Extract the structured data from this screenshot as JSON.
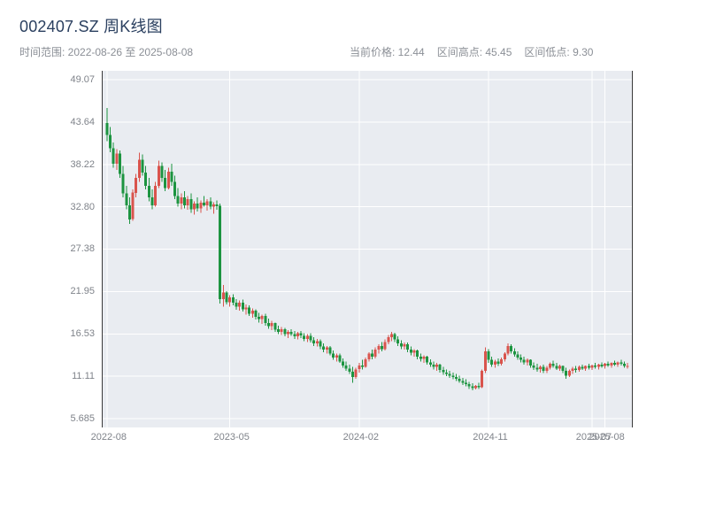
{
  "header": {
    "title": "002407.SZ 周K线图",
    "time_range": "时间范围: 2022-08-26 至 2025-08-08"
  },
  "stats": {
    "current_price": "当前价格: 12.44",
    "range_high": "区间高点: 45.45",
    "range_low": "区间低点: 9.30"
  },
  "chart_data": {
    "type": "candlestick",
    "title": "002407.SZ 周K线图",
    "frequency": "weekly",
    "time_range_start": "2022-08-26",
    "time_range_end": "2025-08-08",
    "current_price": 12.44,
    "range_high": 45.45,
    "range_low": 9.3,
    "up_color": "#d9544d",
    "down_color": "#1c9440",
    "plot_bg": "#e9ecf1",
    "grid_color": "#ffffff",
    "y_tick_labels": [
      "49.07",
      "43.64",
      "38.22",
      "32.80",
      "27.38",
      "21.95",
      "16.53",
      "11.11",
      "5.685"
    ],
    "x_ticks": [
      {
        "label": "2022-08",
        "i": 0
      },
      {
        "label": "2023-05",
        "i": 38
      },
      {
        "label": "2024-02",
        "i": 78
      },
      {
        "label": "2024-11",
        "i": 118
      },
      {
        "label": "2025-07",
        "i": 150
      },
      {
        "label": "2025-08",
        "i": 154
      }
    ],
    "candle_format": [
      "open",
      "high",
      "low",
      "close"
    ],
    "candles": [
      [
        43.5,
        45.45,
        41.2,
        42.0
      ],
      [
        42.0,
        43.0,
        39.8,
        40.3
      ],
      [
        40.3,
        41.0,
        37.8,
        38.3
      ],
      [
        38.3,
        40.2,
        37.5,
        39.6
      ],
      [
        39.6,
        40.0,
        36.5,
        37.0
      ],
      [
        37.0,
        38.0,
        34.0,
        34.5
      ],
      [
        34.5,
        35.5,
        32.5,
        33.0
      ],
      [
        33.0,
        34.0,
        30.6,
        31.2
      ],
      [
        31.2,
        35.0,
        31.0,
        34.6
      ],
      [
        34.6,
        37.0,
        34.0,
        36.5
      ],
      [
        36.5,
        39.7,
        36.0,
        38.8
      ],
      [
        38.8,
        39.5,
        36.8,
        37.2
      ],
      [
        37.2,
        38.0,
        35.0,
        35.5
      ],
      [
        35.5,
        36.5,
        33.5,
        34.0
      ],
      [
        34.0,
        35.0,
        32.5,
        33.0
      ],
      [
        33.0,
        36.0,
        32.8,
        35.5
      ],
      [
        35.5,
        38.7,
        35.2,
        38.0
      ],
      [
        38.0,
        38.5,
        36.0,
        36.5
      ],
      [
        36.5,
        37.5,
        34.8,
        35.2
      ],
      [
        35.2,
        37.8,
        35.0,
        37.3
      ],
      [
        37.3,
        38.3,
        35.5,
        36.0
      ],
      [
        36.0,
        36.8,
        33.8,
        34.2
      ],
      [
        34.2,
        35.2,
        32.8,
        33.2
      ],
      [
        33.2,
        34.5,
        32.5,
        34.0
      ],
      [
        34.0,
        34.8,
        32.6,
        33.0
      ],
      [
        33.0,
        34.2,
        32.4,
        33.8
      ],
      [
        33.8,
        34.5,
        32.0,
        32.5
      ],
      [
        32.5,
        33.5,
        31.8,
        33.2
      ],
      [
        33.2,
        34.0,
        32.2,
        32.6
      ],
      [
        32.6,
        33.6,
        32.0,
        33.3
      ],
      [
        33.3,
        34.2,
        32.8,
        33.0
      ],
      [
        33.0,
        33.8,
        32.3,
        33.5
      ],
      [
        33.5,
        34.0,
        32.5,
        32.8
      ],
      [
        32.8,
        33.4,
        31.9,
        33.1
      ],
      [
        33.1,
        33.6,
        32.4,
        32.9
      ],
      [
        32.9,
        33.2,
        20.4,
        21.0
      ],
      [
        21.0,
        22.8,
        20.0,
        21.8
      ],
      [
        21.8,
        22.0,
        20.3,
        20.6
      ],
      [
        20.6,
        21.5,
        20.0,
        21.2
      ],
      [
        21.2,
        21.6,
        20.2,
        20.5
      ],
      [
        20.5,
        21.0,
        19.6,
        20.0
      ],
      [
        20.0,
        20.8,
        19.5,
        20.5
      ],
      [
        20.5,
        20.9,
        19.4,
        19.7
      ],
      [
        19.7,
        20.3,
        19.0,
        19.9
      ],
      [
        19.9,
        20.2,
        18.8,
        19.1
      ],
      [
        19.1,
        19.8,
        18.6,
        19.5
      ],
      [
        19.5,
        19.7,
        18.4,
        18.7
      ],
      [
        18.7,
        19.2,
        18.0,
        18.4
      ],
      [
        18.4,
        19.0,
        17.8,
        18.8
      ],
      [
        18.8,
        19.1,
        17.6,
        17.9
      ],
      [
        17.9,
        18.5,
        17.2,
        17.5
      ],
      [
        17.5,
        18.2,
        17.0,
        17.9
      ],
      [
        17.9,
        18.0,
        16.8,
        17.1
      ],
      [
        17.1,
        17.6,
        16.5,
        16.8
      ],
      [
        16.8,
        17.4,
        16.4,
        17.1
      ],
      [
        17.1,
        17.3,
        16.2,
        16.5
      ],
      [
        16.5,
        17.0,
        16.0,
        16.8
      ],
      [
        16.8,
        17.1,
        16.3,
        16.5
      ],
      [
        16.5,
        16.9,
        15.9,
        16.2
      ],
      [
        16.2,
        16.8,
        15.8,
        16.6
      ],
      [
        16.6,
        16.9,
        16.0,
        16.3
      ],
      [
        16.3,
        16.6,
        15.6,
        15.9
      ],
      [
        15.9,
        16.5,
        15.5,
        16.3
      ],
      [
        16.3,
        16.6,
        15.4,
        15.7
      ],
      [
        15.7,
        16.1,
        15.0,
        15.3
      ],
      [
        15.3,
        15.9,
        14.9,
        15.6
      ],
      [
        15.6,
        15.8,
        14.6,
        14.9
      ],
      [
        14.9,
        15.3,
        14.2,
        14.5
      ],
      [
        14.5,
        15.0,
        14.0,
        14.8
      ],
      [
        14.8,
        15.0,
        13.8,
        14.0
      ],
      [
        14.0,
        14.4,
        13.2,
        13.5
      ],
      [
        13.5,
        14.0,
        13.0,
        13.8
      ],
      [
        13.8,
        14.0,
        12.8,
        13.0
      ],
      [
        13.0,
        13.4,
        12.2,
        12.5
      ],
      [
        12.5,
        13.0,
        11.8,
        12.1
      ],
      [
        12.1,
        12.6,
        11.4,
        11.7
      ],
      [
        11.7,
        12.3,
        10.3,
        11.0
      ],
      [
        11.0,
        12.2,
        10.8,
        12.0
      ],
      [
        12.0,
        12.8,
        11.6,
        12.5
      ],
      [
        12.5,
        13.2,
        12.0,
        12.3
      ],
      [
        12.3,
        13.5,
        12.2,
        13.3
      ],
      [
        13.3,
        14.2,
        13.0,
        14.0
      ],
      [
        14.0,
        14.5,
        13.3,
        13.6
      ],
      [
        13.6,
        14.8,
        13.4,
        14.5
      ],
      [
        14.5,
        15.2,
        14.0,
        15.0
      ],
      [
        15.0,
        15.5,
        14.3,
        14.6
      ],
      [
        14.6,
        15.8,
        14.4,
        15.5
      ],
      [
        15.5,
        16.4,
        15.2,
        16.1
      ],
      [
        16.1,
        16.8,
        15.6,
        16.5
      ],
      [
        16.5,
        16.7,
        15.5,
        15.8
      ],
      [
        15.8,
        16.2,
        15.0,
        15.3
      ],
      [
        15.3,
        15.7,
        14.6,
        14.9
      ],
      [
        14.9,
        15.4,
        14.5,
        15.2
      ],
      [
        15.2,
        15.4,
        14.2,
        14.5
      ],
      [
        14.5,
        14.9,
        13.8,
        14.1
      ],
      [
        14.1,
        14.6,
        13.6,
        14.4
      ],
      [
        14.4,
        14.5,
        13.3,
        13.6
      ],
      [
        13.6,
        14.0,
        13.0,
        13.3
      ],
      [
        13.3,
        13.8,
        12.8,
        13.6
      ],
      [
        13.6,
        13.7,
        12.6,
        12.9
      ],
      [
        12.9,
        13.3,
        12.3,
        12.6
      ],
      [
        12.6,
        13.0,
        12.0,
        12.3
      ],
      [
        12.3,
        12.8,
        11.8,
        12.6
      ],
      [
        12.6,
        12.7,
        11.6,
        11.9
      ],
      [
        11.9,
        12.3,
        11.3,
        11.6
      ],
      [
        11.6,
        12.0,
        11.1,
        11.4
      ],
      [
        11.4,
        11.8,
        10.9,
        11.2
      ],
      [
        11.2,
        11.6,
        10.7,
        11.0
      ],
      [
        11.0,
        11.4,
        10.5,
        10.8
      ],
      [
        10.8,
        11.2,
        10.3,
        10.5
      ],
      [
        10.5,
        10.9,
        10.0,
        10.3
      ],
      [
        10.3,
        10.7,
        9.8,
        10.1
      ],
      [
        10.1,
        10.4,
        9.5,
        9.8
      ],
      [
        9.8,
        10.2,
        9.3,
        9.6
      ],
      [
        9.6,
        10.0,
        9.4,
        9.9
      ],
      [
        9.9,
        10.3,
        9.5,
        9.7
      ],
      [
        9.7,
        12.0,
        9.6,
        11.8
      ],
      [
        11.8,
        14.8,
        11.5,
        14.3
      ],
      [
        14.3,
        14.6,
        12.8,
        13.2
      ],
      [
        13.2,
        13.6,
        12.3,
        12.6
      ],
      [
        12.6,
        13.2,
        12.2,
        13.0
      ],
      [
        13.0,
        13.4,
        12.4,
        12.7
      ],
      [
        12.7,
        13.5,
        12.5,
        13.3
      ],
      [
        13.3,
        14.2,
        13.0,
        14.0
      ],
      [
        14.0,
        15.3,
        13.8,
        15.0
      ],
      [
        15.0,
        15.2,
        14.0,
        14.3
      ],
      [
        14.3,
        14.7,
        13.6,
        13.9
      ],
      [
        13.9,
        14.3,
        13.2,
        13.5
      ],
      [
        13.5,
        13.9,
        12.9,
        13.2
      ],
      [
        13.2,
        13.6,
        12.6,
        12.9
      ],
      [
        12.9,
        13.4,
        12.5,
        13.2
      ],
      [
        13.2,
        13.3,
        12.2,
        12.5
      ],
      [
        12.5,
        12.9,
        11.9,
        12.2
      ],
      [
        12.2,
        12.7,
        11.7,
        12.0
      ],
      [
        12.0,
        12.5,
        11.6,
        12.3
      ],
      [
        12.3,
        12.6,
        11.5,
        11.8
      ],
      [
        11.8,
        12.4,
        11.5,
        12.2
      ],
      [
        12.2,
        12.9,
        12.0,
        12.7
      ],
      [
        12.7,
        13.1,
        12.2,
        12.4
      ],
      [
        12.4,
        12.8,
        11.9,
        12.1
      ],
      [
        12.1,
        12.6,
        11.8,
        12.4
      ],
      [
        12.4,
        12.5,
        11.5,
        11.8
      ],
      [
        11.8,
        12.2,
        10.8,
        11.2
      ],
      [
        11.2,
        12.0,
        11.0,
        11.8
      ],
      [
        11.8,
        12.3,
        11.4,
        12.1
      ],
      [
        12.1,
        12.4,
        11.6,
        11.9
      ],
      [
        11.9,
        12.5,
        11.7,
        12.3
      ],
      [
        12.3,
        12.6,
        11.9,
        12.1
      ],
      [
        12.1,
        12.5,
        11.8,
        12.4
      ],
      [
        12.4,
        12.7,
        12.0,
        12.2
      ],
      [
        12.2,
        12.6,
        11.9,
        12.5
      ],
      [
        12.5,
        12.8,
        12.1,
        12.3
      ],
      [
        12.3,
        12.7,
        12.0,
        12.6
      ],
      [
        12.6,
        12.9,
        12.2,
        12.4
      ],
      [
        12.4,
        12.8,
        12.1,
        12.7
      ],
      [
        12.7,
        13.0,
        12.3,
        12.5
      ],
      [
        12.5,
        12.9,
        12.2,
        12.8
      ],
      [
        12.8,
        13.1,
        12.4,
        12.6
      ],
      [
        12.6,
        13.0,
        12.3,
        12.9
      ],
      [
        12.9,
        13.2,
        12.5,
        12.7
      ],
      [
        12.7,
        13.0,
        12.2,
        12.4
      ],
      [
        12.4,
        12.8,
        12.1,
        12.44
      ]
    ]
  }
}
